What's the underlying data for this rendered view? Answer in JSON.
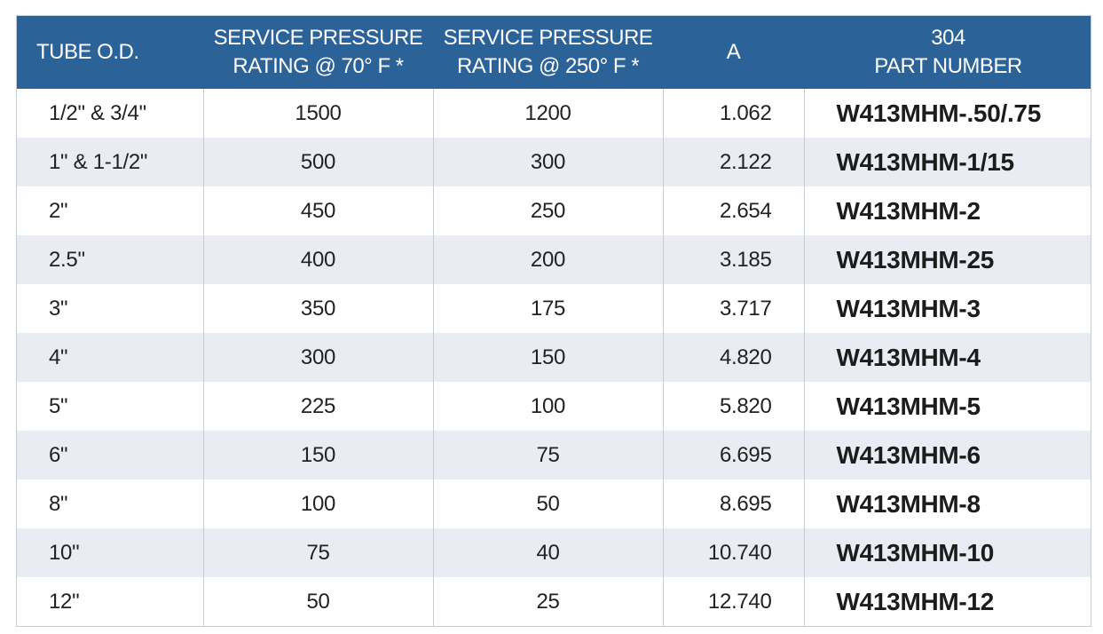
{
  "headers": {
    "tube_od": "TUBE O.D.",
    "pressure70_line1": "SERVICE PRESSURE",
    "pressure70_line2": "RATING @ 70° F *",
    "pressure250_line1": "SERVICE PRESSURE",
    "pressure250_line2": "RATING @ 250° F *",
    "a": "A",
    "part_line1": "304",
    "part_line2": "PART NUMBER"
  },
  "rows": [
    {
      "tube_od": "1/2\" & 3/4\"",
      "p70": "1500",
      "p250": "1200",
      "a": "1.062",
      "part": "W413MHM-.50/.75"
    },
    {
      "tube_od": "1\" & 1-1/2\"",
      "p70": "500",
      "p250": "300",
      "a": "2.122",
      "part": "W413MHM-1/15"
    },
    {
      "tube_od": "2\"",
      "p70": "450",
      "p250": "250",
      "a": "2.654",
      "part": "W413MHM-2"
    },
    {
      "tube_od": "2.5\"",
      "p70": "400",
      "p250": "200",
      "a": "3.185",
      "part": "W413MHM-25"
    },
    {
      "tube_od": "3\"",
      "p70": "350",
      "p250": "175",
      "a": "3.717",
      "part": "W413MHM-3"
    },
    {
      "tube_od": "4\"",
      "p70": "300",
      "p250": "150",
      "a": "4.820",
      "part": "W413MHM-4"
    },
    {
      "tube_od": "5\"",
      "p70": "225",
      "p250": "100",
      "a": "5.820",
      "part": "W413MHM-5"
    },
    {
      "tube_od": "6\"",
      "p70": "150",
      "p250": "75",
      "a": "6.695",
      "part": "W413MHM-6"
    },
    {
      "tube_od": "8\"",
      "p70": "100",
      "p250": "50",
      "a": "8.695",
      "part": "W413MHM-8"
    },
    {
      "tube_od": "10\"",
      "p70": "75",
      "p250": "40",
      "a": "10.740",
      "part": "W413MHM-10"
    },
    {
      "tube_od": "12\"",
      "p70": "50",
      "p250": "25",
      "a": "12.740",
      "part": "W413MHM-12"
    }
  ],
  "colors": {
    "header_bg": "#2b6297",
    "header_text": "#ffffff",
    "stripe_bg": "#e9edf3"
  }
}
